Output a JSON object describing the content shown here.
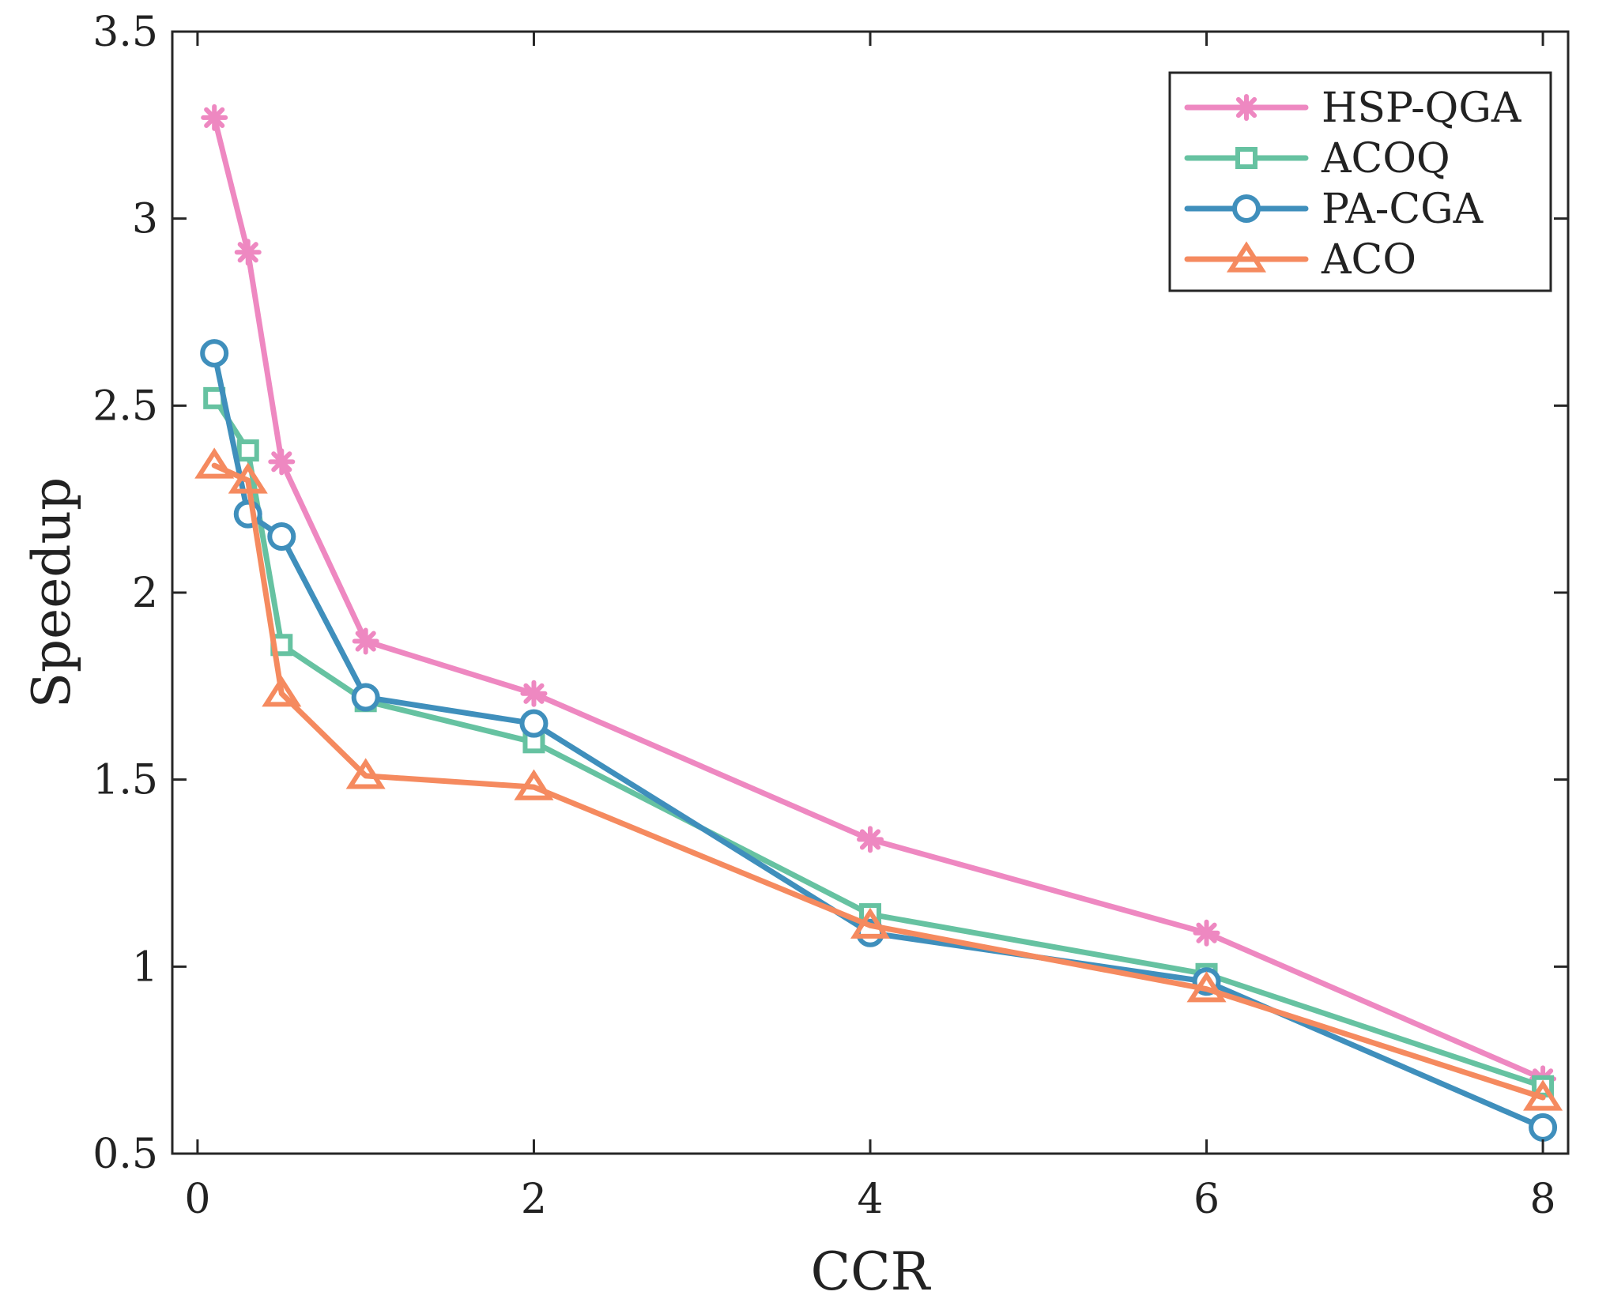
{
  "chart_data": {
    "type": "line",
    "title": "",
    "xlabel": "CCR",
    "ylabel": "Speedup",
    "xlim": [
      -0.15,
      8.15
    ],
    "ylim": [
      0.5,
      3.5
    ],
    "xticks": [
      0,
      2,
      4,
      6,
      8
    ],
    "xtick_labels": [
      "0",
      "2",
      "4",
      "6",
      "8"
    ],
    "yticks": [
      0.5,
      1,
      1.5,
      2,
      2.5,
      3,
      3.5
    ],
    "ytick_labels": [
      "0.5",
      "1",
      "1.5",
      "2",
      "2.5",
      "3",
      "3.5"
    ],
    "grid": false,
    "legend_position": "top-right",
    "x": [
      0.1,
      0.3,
      0.5,
      1,
      2,
      4,
      6,
      8
    ],
    "series": [
      {
        "name": "HSP-QGA",
        "marker": "asterisk",
        "color": "#ee88c1",
        "values": [
          3.27,
          2.91,
          2.35,
          1.87,
          1.73,
          1.34,
          1.09,
          0.7
        ]
      },
      {
        "name": "ACOQ",
        "marker": "square",
        "color": "#66c2a1",
        "values": [
          2.52,
          2.38,
          1.86,
          1.71,
          1.6,
          1.14,
          0.98,
          0.68
        ]
      },
      {
        "name": "PA-CGA",
        "marker": "circle",
        "color": "#3f8fbc",
        "values": [
          2.64,
          2.21,
          2.15,
          1.72,
          1.65,
          1.09,
          0.96,
          0.57
        ]
      },
      {
        "name": "ACO",
        "marker": "triangle",
        "color": "#f58a5f",
        "values": [
          2.34,
          2.3,
          1.73,
          1.51,
          1.48,
          1.11,
          0.94,
          0.65
        ]
      }
    ]
  }
}
